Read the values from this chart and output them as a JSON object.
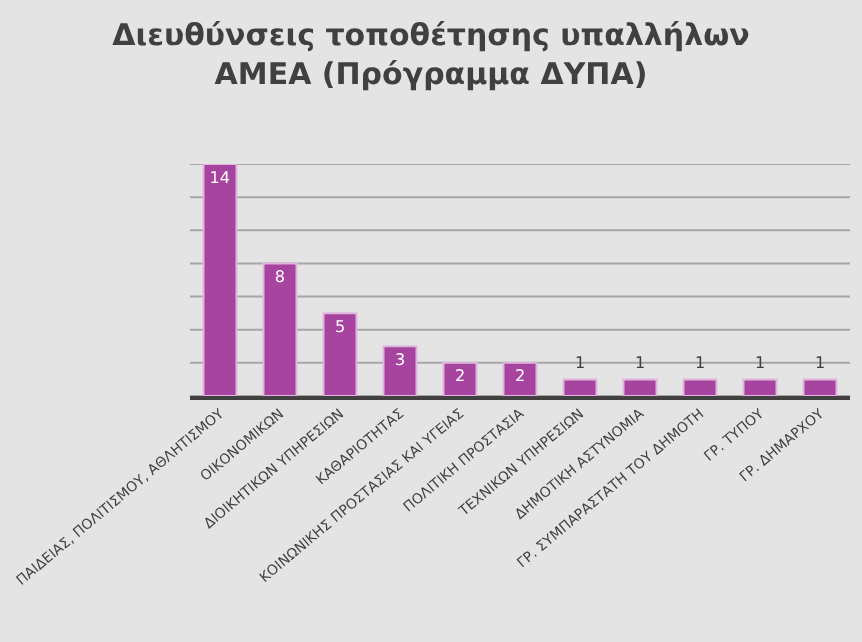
{
  "chart_data": {
    "type": "bar",
    "title": "Διευθύνσεις τοποθέτησης υπαλλήλων\nΑΜΕΑ (Πρόγραμμα ΔΥΠΑ)",
    "categories": [
      "ΠΑΙΔΕΙΑΣ, ΠΟΛΙΤΙΣΜΟΥ, ΑΘΛΗΤΙΣΜΟΥ",
      "ΟΙΚΟΝΟΜΙΚΩΝ",
      "ΔΙΟΙΚΗΤΙΚΩΝ ΥΠΗΡΕΣΙΩΝ",
      "ΚΑΘΑΡΙΟΤΗΤΑΣ",
      "ΚΟΙΝΩΝΙΚΗΣ ΠΡΟΣΤΑΣΙΑΣ ΚΑΙ ΥΓΕΙΑΣ",
      "ΠΟΛΙΤΙΚΗ ΠΡΟΣΤΑΣΙΑ",
      "ΤΕΧΝΙΚΩΝ ΥΠΗΡΕΣΙΩΝ",
      "ΔΗΜΟΤΙΚΗ ΑΣΤΥΝΟΜΙΑ",
      "ΓΡ. ΣΥΜΠΑΡΑΣΤΑΤΗ ΤΟΥ ΔΗΜΟΤΗ",
      "ΓΡ. ΤΥΠΟΥ",
      "ΓΡ. ΔΗΜΑΡΧΟΥ"
    ],
    "values": [
      14,
      8,
      5,
      3,
      2,
      2,
      1,
      1,
      1,
      1,
      1
    ],
    "color": "#a6449f",
    "data_labels": true,
    "ylim": [
      0,
      14
    ],
    "yticks": [
      {
        "value": 0,
        "label": null
      },
      {
        "value": 2,
        "label": null
      },
      {
        "value": 4,
        "label": null
      },
      {
        "value": 6,
        "label": null
      },
      {
        "value": 8,
        "label": null
      },
      {
        "value": 10,
        "label": null
      },
      {
        "value": 12,
        "label": null
      },
      {
        "value": 14,
        "label": null
      }
    ],
    "grid": "y",
    "tick_labels": "x"
  }
}
